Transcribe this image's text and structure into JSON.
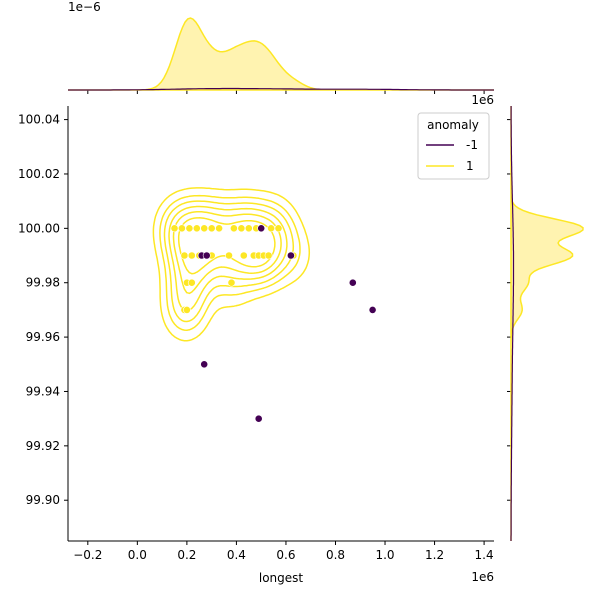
{
  "chart_data": {
    "type": "scatter",
    "title": "",
    "xlabel": "longest",
    "ylabel": "",
    "x_scale_label": "1e6",
    "x_top_scale_label": "1e6",
    "top_marginal_scale_label": "1e−6",
    "xlim": [
      -0.28,
      1.44
    ],
    "ylim": [
      99.885,
      100.045
    ],
    "x_ticks": [
      -0.2,
      0.0,
      0.2,
      0.4,
      0.6,
      0.8,
      1.0,
      1.2,
      1.4
    ],
    "x_tick_labels": [
      "−0.2",
      "0.0",
      "0.2",
      "0.4",
      "0.6",
      "0.8",
      "1.0",
      "1.2",
      "1.4"
    ],
    "y_ticks": [
      99.9,
      99.92,
      99.94,
      99.96,
      99.98,
      100.0,
      100.02,
      100.04
    ],
    "y_tick_labels": [
      "99.90",
      "99.92",
      "99.94",
      "99.96",
      "99.98",
      "100.00",
      "100.02",
      "100.04"
    ],
    "grid": false,
    "legend": {
      "title": "anomaly",
      "placement": "top-right",
      "entries": [
        {
          "label": "-1",
          "color": "#440154"
        },
        {
          "label": "1",
          "color": "#fde725"
        }
      ]
    },
    "colors": {
      "anomaly_neg": "#440154",
      "anomaly_pos": "#fde725",
      "kde_fill": "#fff3b0"
    },
    "series": [
      {
        "name": "1",
        "x": [
          0.15,
          0.18,
          0.21,
          0.24,
          0.27,
          0.3,
          0.33,
          0.39,
          0.42,
          0.45,
          0.48,
          0.54,
          0.57,
          0.19,
          0.22,
          0.25,
          0.3,
          0.37,
          0.43,
          0.47,
          0.49,
          0.51,
          0.53,
          0.63,
          0.2,
          0.22,
          0.38,
          0.19,
          0.2
        ],
        "y": [
          100.0,
          100.0,
          100.0,
          100.0,
          100.0,
          100.0,
          100.0,
          100.0,
          100.0,
          100.0,
          100.0,
          100.0,
          100.0,
          99.99,
          99.99,
          99.99,
          99.99,
          99.99,
          99.99,
          99.99,
          99.99,
          99.99,
          99.99,
          99.99,
          99.98,
          99.98,
          99.98,
          99.97,
          99.97
        ]
      },
      {
        "name": "-1",
        "x": [
          0.5,
          0.26,
          0.28,
          0.62,
          0.87,
          0.95,
          0.27,
          0.49
        ],
        "y": [
          100.0,
          99.99,
          99.99,
          99.99,
          99.98,
          99.97,
          99.95,
          99.93
        ]
      }
    ]
  }
}
